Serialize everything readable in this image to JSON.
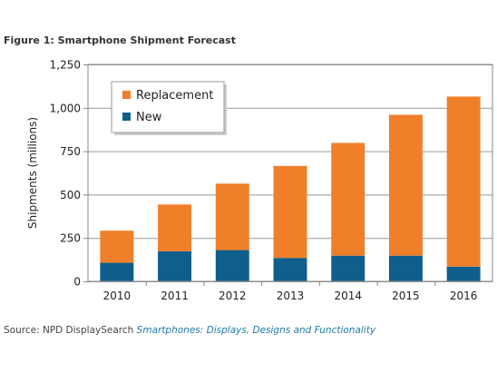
{
  "figure": {
    "title": "Figure 1: Smartphone Shipment Forecast",
    "source_prefix": "Source: NPD DisplaySearch",
    "source_title": "Smartphones: Displays, Designs and Functionality"
  },
  "colors": {
    "replacement": "#F07F2A",
    "new": "#0F5E8C",
    "grid": "#999999",
    "plot_border": "#888888"
  },
  "chart_data": {
    "type": "bar",
    "stacked": true,
    "categories": [
      "2010",
      "2011",
      "2012",
      "2013",
      "2014",
      "2015",
      "2016"
    ],
    "series": [
      {
        "name": "New",
        "values": [
          107,
          173,
          180,
          135,
          148,
          148,
          85
        ]
      },
      {
        "name": "Replacement",
        "values": [
          185,
          270,
          383,
          530,
          650,
          812,
          980
        ]
      }
    ],
    "title": "",
    "xlabel": "",
    "ylabel": "Shipments  (millions)",
    "ylim": [
      0,
      1250
    ],
    "yticks": [
      0,
      250,
      500,
      750,
      1000,
      1250
    ],
    "ytick_labels": [
      "0",
      "250",
      "500",
      "750",
      "1,000",
      "1,250"
    ],
    "grid": true,
    "legend": {
      "placement": "top-left",
      "order": [
        "Replacement",
        "New"
      ]
    }
  }
}
